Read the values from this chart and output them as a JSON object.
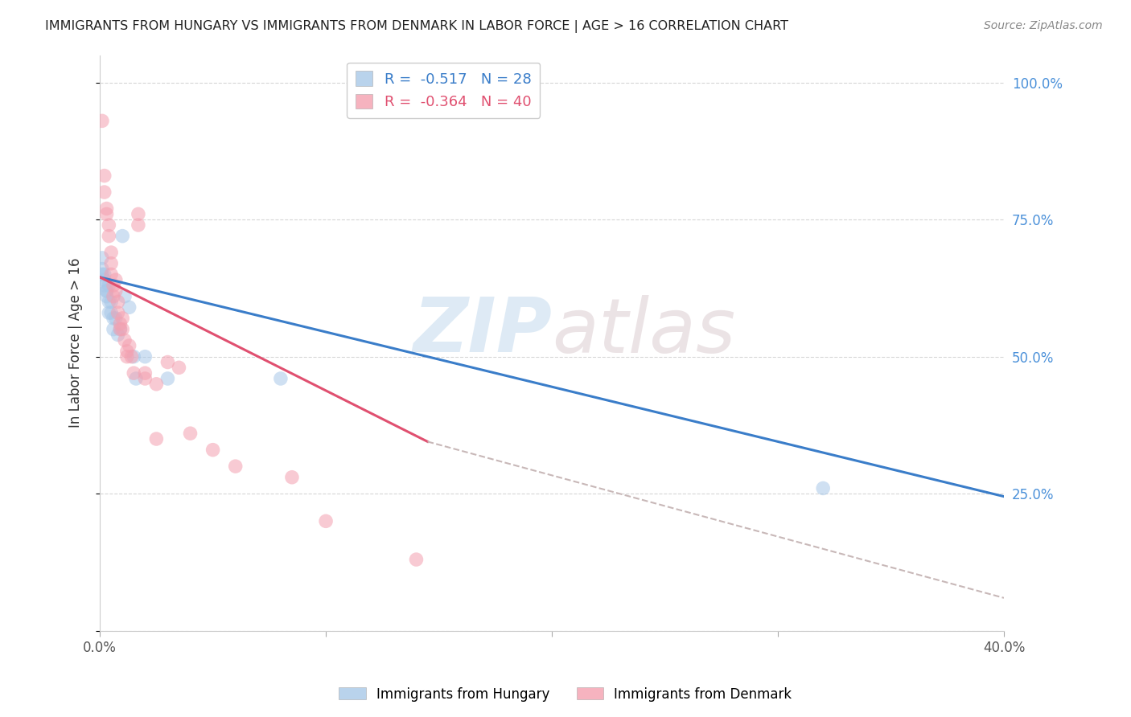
{
  "title": "IMMIGRANTS FROM HUNGARY VS IMMIGRANTS FROM DENMARK IN LABOR FORCE | AGE > 16 CORRELATION CHART",
  "source": "Source: ZipAtlas.com",
  "ylabel": "In Labor Force | Age > 16",
  "right_yticks": [
    0.0,
    0.25,
    0.5,
    0.75,
    1.0
  ],
  "right_yticklabels": [
    "",
    "25.0%",
    "50.0%",
    "75.0%",
    "100.0%"
  ],
  "xlim": [
    0.0,
    0.4
  ],
  "ylim": [
    0.0,
    1.05
  ],
  "xticks": [
    0.0,
    0.1,
    0.2,
    0.3,
    0.4
  ],
  "xticklabels": [
    "0.0%",
    "",
    "",
    "",
    "40.0%"
  ],
  "hungary_color": "#A8C8E8",
  "denmark_color": "#F4A0B0",
  "hungary_R": -0.517,
  "hungary_N": 28,
  "denmark_R": -0.364,
  "denmark_N": 40,
  "hungary_line_color": "#3A7DC9",
  "denmark_line_color": "#E05070",
  "dashed_line_color": "#C8B8B8",
  "watermark_zip": "ZIP",
  "watermark_atlas": "atlas",
  "hungary_scatter": [
    [
      0.001,
      0.68
    ],
    [
      0.001,
      0.66
    ],
    [
      0.001,
      0.65
    ],
    [
      0.002,
      0.65
    ],
    [
      0.002,
      0.64
    ],
    [
      0.002,
      0.63
    ],
    [
      0.003,
      0.62
    ],
    [
      0.003,
      0.62
    ],
    [
      0.003,
      0.61
    ],
    [
      0.004,
      0.63
    ],
    [
      0.004,
      0.6
    ],
    [
      0.004,
      0.58
    ],
    [
      0.005,
      0.6
    ],
    [
      0.005,
      0.58
    ],
    [
      0.006,
      0.57
    ],
    [
      0.006,
      0.55
    ],
    [
      0.007,
      0.57
    ],
    [
      0.008,
      0.54
    ],
    [
      0.009,
      0.55
    ],
    [
      0.01,
      0.72
    ],
    [
      0.011,
      0.61
    ],
    [
      0.013,
      0.59
    ],
    [
      0.015,
      0.5
    ],
    [
      0.016,
      0.46
    ],
    [
      0.02,
      0.5
    ],
    [
      0.03,
      0.46
    ],
    [
      0.08,
      0.46
    ],
    [
      0.32,
      0.26
    ]
  ],
  "denmark_scatter": [
    [
      0.001,
      0.93
    ],
    [
      0.002,
      0.83
    ],
    [
      0.002,
      0.8
    ],
    [
      0.003,
      0.77
    ],
    [
      0.003,
      0.76
    ],
    [
      0.004,
      0.74
    ],
    [
      0.004,
      0.72
    ],
    [
      0.005,
      0.69
    ],
    [
      0.005,
      0.67
    ],
    [
      0.005,
      0.65
    ],
    [
      0.006,
      0.63
    ],
    [
      0.006,
      0.61
    ],
    [
      0.007,
      0.64
    ],
    [
      0.007,
      0.62
    ],
    [
      0.008,
      0.6
    ],
    [
      0.008,
      0.58
    ],
    [
      0.009,
      0.56
    ],
    [
      0.009,
      0.55
    ],
    [
      0.01,
      0.57
    ],
    [
      0.01,
      0.55
    ],
    [
      0.011,
      0.53
    ],
    [
      0.012,
      0.51
    ],
    [
      0.012,
      0.5
    ],
    [
      0.013,
      0.52
    ],
    [
      0.014,
      0.5
    ],
    [
      0.015,
      0.47
    ],
    [
      0.017,
      0.76
    ],
    [
      0.017,
      0.74
    ],
    [
      0.02,
      0.47
    ],
    [
      0.02,
      0.46
    ],
    [
      0.025,
      0.45
    ],
    [
      0.025,
      0.35
    ],
    [
      0.03,
      0.49
    ],
    [
      0.035,
      0.48
    ],
    [
      0.04,
      0.36
    ],
    [
      0.05,
      0.33
    ],
    [
      0.06,
      0.3
    ],
    [
      0.085,
      0.28
    ],
    [
      0.1,
      0.2
    ],
    [
      0.14,
      0.13
    ]
  ],
  "hungary_line_x": [
    0.0,
    0.4
  ],
  "hungary_line_y": [
    0.645,
    0.245
  ],
  "denmark_line_x": [
    0.0,
    0.145
  ],
  "denmark_line_y": [
    0.645,
    0.345
  ],
  "dashed_line_x": [
    0.145,
    0.4
  ],
  "dashed_line_y": [
    0.345,
    0.06
  ],
  "bg_color": "#FFFFFF",
  "grid_color": "#CCCCCC",
  "title_color": "#222222",
  "right_axis_color": "#4A90D9",
  "scatter_size": 160,
  "scatter_alpha": 0.55
}
